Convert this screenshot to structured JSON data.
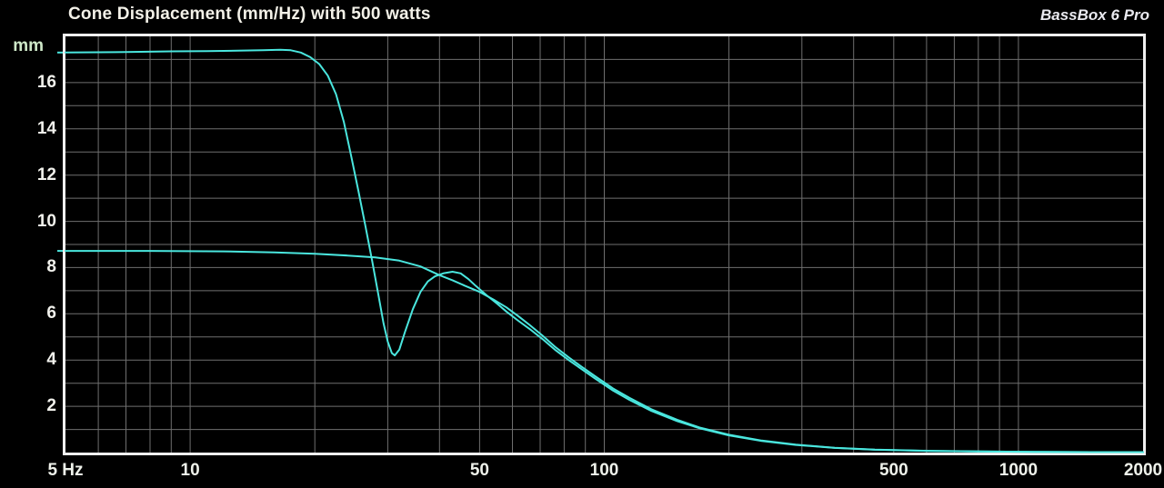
{
  "header": {
    "title": "Cone Displacement (mm/Hz) with 500 watts",
    "brand": "BassBox 6 Pro"
  },
  "chart_data": {
    "type": "line",
    "title": "Cone Displacement (mm/Hz) with 500 watts",
    "x_scale": "log",
    "xlim": [
      5,
      2000
    ],
    "ylim": [
      0,
      18
    ],
    "x_unit": "Hz",
    "y_unit": "mm",
    "grid": "on",
    "legend": "none",
    "background_color": "#000000",
    "grid_color": "#6f6f6f",
    "border_color": "#f0f0f0",
    "curve_color": "#4ae6de",
    "x_ticks": [
      {
        "value": 5,
        "label": "5 Hz"
      },
      {
        "value": 10,
        "label": "10"
      },
      {
        "value": 50,
        "label": "50"
      },
      {
        "value": 100,
        "label": "100"
      },
      {
        "value": 500,
        "label": "500"
      },
      {
        "value": 1000,
        "label": "1000"
      },
      {
        "value": 2000,
        "label": "2000"
      }
    ],
    "y_ticks": [
      {
        "value": 16,
        "label": "16"
      },
      {
        "value": 14,
        "label": "14"
      },
      {
        "value": 12,
        "label": "12"
      },
      {
        "value": 10,
        "label": "10"
      },
      {
        "value": 8,
        "label": "8"
      },
      {
        "value": 6,
        "label": "6"
      },
      {
        "value": 4,
        "label": "4"
      },
      {
        "value": 2,
        "label": "2"
      }
    ],
    "x_gridlines": [
      6,
      7,
      8,
      9,
      10,
      20,
      30,
      40,
      50,
      60,
      70,
      80,
      90,
      100,
      200,
      300,
      400,
      500,
      600,
      700,
      800,
      900,
      1000
    ],
    "y_gridlines": [
      1,
      2,
      3,
      4,
      5,
      6,
      7,
      8,
      9,
      10,
      11,
      12,
      13,
      14,
      15,
      16,
      17
    ],
    "series": [
      {
        "name": "series-1-notched-curve",
        "color": "#4ae6de",
        "points": [
          [
            5,
            17.3
          ],
          [
            7,
            17.32
          ],
          [
            9,
            17.35
          ],
          [
            11,
            17.36
          ],
          [
            13,
            17.38
          ],
          [
            15,
            17.4
          ],
          [
            16.5,
            17.42
          ],
          [
            17.5,
            17.4
          ],
          [
            18.5,
            17.3
          ],
          [
            19.5,
            17.1
          ],
          [
            20.5,
            16.8
          ],
          [
            21.5,
            16.3
          ],
          [
            22.5,
            15.5
          ],
          [
            23.5,
            14.3
          ],
          [
            24.5,
            12.8
          ],
          [
            25.5,
            11.3
          ],
          [
            26.5,
            9.8
          ],
          [
            27.5,
            8.3
          ],
          [
            28.5,
            6.8
          ],
          [
            29.3,
            5.6
          ],
          [
            30,
            4.8
          ],
          [
            30.7,
            4.3
          ],
          [
            31.2,
            4.2
          ],
          [
            32,
            4.45
          ],
          [
            33,
            5.2
          ],
          [
            34.5,
            6.2
          ],
          [
            36,
            6.95
          ],
          [
            37.5,
            7.4
          ],
          [
            39,
            7.62
          ],
          [
            41,
            7.76
          ],
          [
            43,
            7.82
          ],
          [
            45,
            7.75
          ],
          [
            47,
            7.5
          ],
          [
            49,
            7.2
          ],
          [
            52,
            6.8
          ],
          [
            55,
            6.45
          ],
          [
            58,
            6.1
          ],
          [
            62,
            5.7
          ],
          [
            66,
            5.35
          ],
          [
            71,
            4.9
          ],
          [
            76,
            4.45
          ],
          [
            82,
            4.0
          ],
          [
            88,
            3.62
          ],
          [
            95,
            3.2
          ],
          [
            105,
            2.68
          ],
          [
            115,
            2.28
          ],
          [
            130,
            1.8
          ],
          [
            150,
            1.36
          ],
          [
            170,
            1.05
          ],
          [
            200,
            0.74
          ],
          [
            240,
            0.5
          ],
          [
            290,
            0.33
          ],
          [
            360,
            0.2
          ],
          [
            450,
            0.12
          ],
          [
            600,
            0.07
          ],
          [
            800,
            0.05
          ],
          [
            1100,
            0.03
          ],
          [
            1500,
            0.02
          ],
          [
            2000,
            0.02
          ]
        ]
      },
      {
        "name": "series-2-smooth-curve",
        "color": "#4ae6de",
        "points": [
          [
            5,
            8.72
          ],
          [
            8,
            8.72
          ],
          [
            12,
            8.7
          ],
          [
            16,
            8.66
          ],
          [
            20,
            8.6
          ],
          [
            24,
            8.52
          ],
          [
            28,
            8.44
          ],
          [
            32,
            8.3
          ],
          [
            36,
            8.05
          ],
          [
            40,
            7.67
          ],
          [
            43,
            7.45
          ],
          [
            46,
            7.22
          ],
          [
            50,
            6.95
          ],
          [
            54,
            6.62
          ],
          [
            58,
            6.28
          ],
          [
            62,
            5.9
          ],
          [
            66,
            5.52
          ],
          [
            71,
            5.05
          ],
          [
            76,
            4.58
          ],
          [
            82,
            4.12
          ],
          [
            88,
            3.72
          ],
          [
            95,
            3.3
          ],
          [
            105,
            2.77
          ],
          [
            115,
            2.37
          ],
          [
            130,
            1.87
          ],
          [
            150,
            1.42
          ],
          [
            170,
            1.08
          ],
          [
            200,
            0.77
          ],
          [
            240,
            0.52
          ],
          [
            290,
            0.34
          ],
          [
            360,
            0.21
          ],
          [
            450,
            0.13
          ],
          [
            600,
            0.08
          ],
          [
            800,
            0.05
          ],
          [
            1100,
            0.03
          ],
          [
            1500,
            0.02
          ],
          [
            2000,
            0.02
          ]
        ]
      }
    ]
  }
}
